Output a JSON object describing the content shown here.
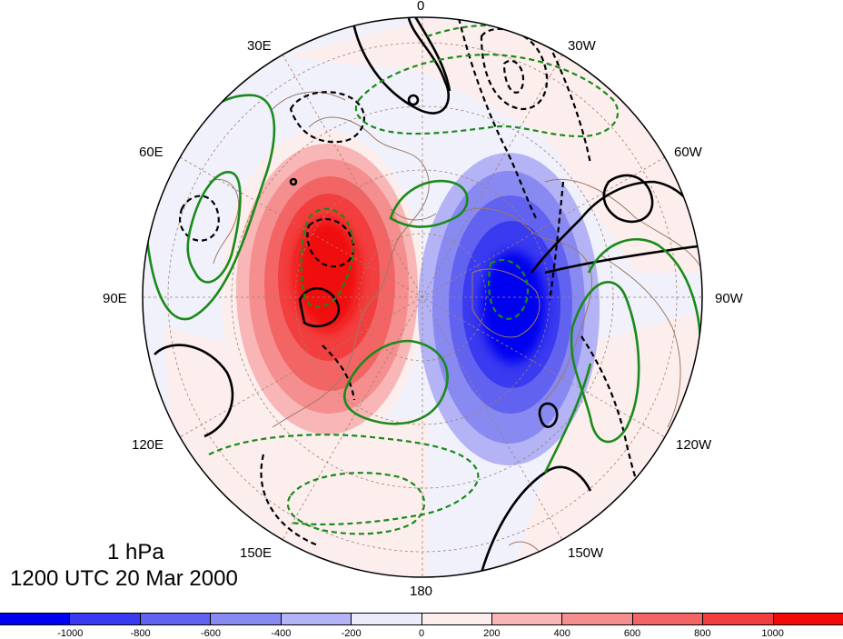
{
  "map": {
    "projection": "north polar stereographic",
    "field": "pressure level anomaly",
    "longitude_labels": {
      "lon_0": "0",
      "lon_30w": "30W",
      "lon_60w": "60W",
      "lon_90w": "90W",
      "lon_120w": "120W",
      "lon_150w": "150W",
      "lon_180": "180",
      "lon_150e": "150E",
      "lon_120e": "120E",
      "lon_90e": "90E",
      "lon_60e": "60E",
      "lon_30e": "30E"
    },
    "level": "1 hPa",
    "valid_time": "1200 UTC 20 Mar 2000",
    "positive_center_region": "Eurasia / Siberia",
    "negative_center_region": "North America / Canada",
    "contour_lines": {
      "black_solid": "positive contours",
      "black_dashed": "negative contours",
      "green_solid": "positive contours",
      "green_dashed": "negative contours"
    }
  },
  "colorbar": {
    "tick_labels": [
      "-1000",
      "-800",
      "-600",
      "-400",
      "-200",
      "0",
      "200",
      "400",
      "600",
      "800",
      "1000"
    ],
    "colors": [
      "#0000f0",
      "#3a3af0",
      "#6262f0",
      "#8989f2",
      "#b3b3f5",
      "#ebebfb",
      "#fdeeee",
      "#f8b6b6",
      "#f58e8e",
      "#f36565",
      "#f23e3e",
      "#f00a0a"
    ]
  }
}
